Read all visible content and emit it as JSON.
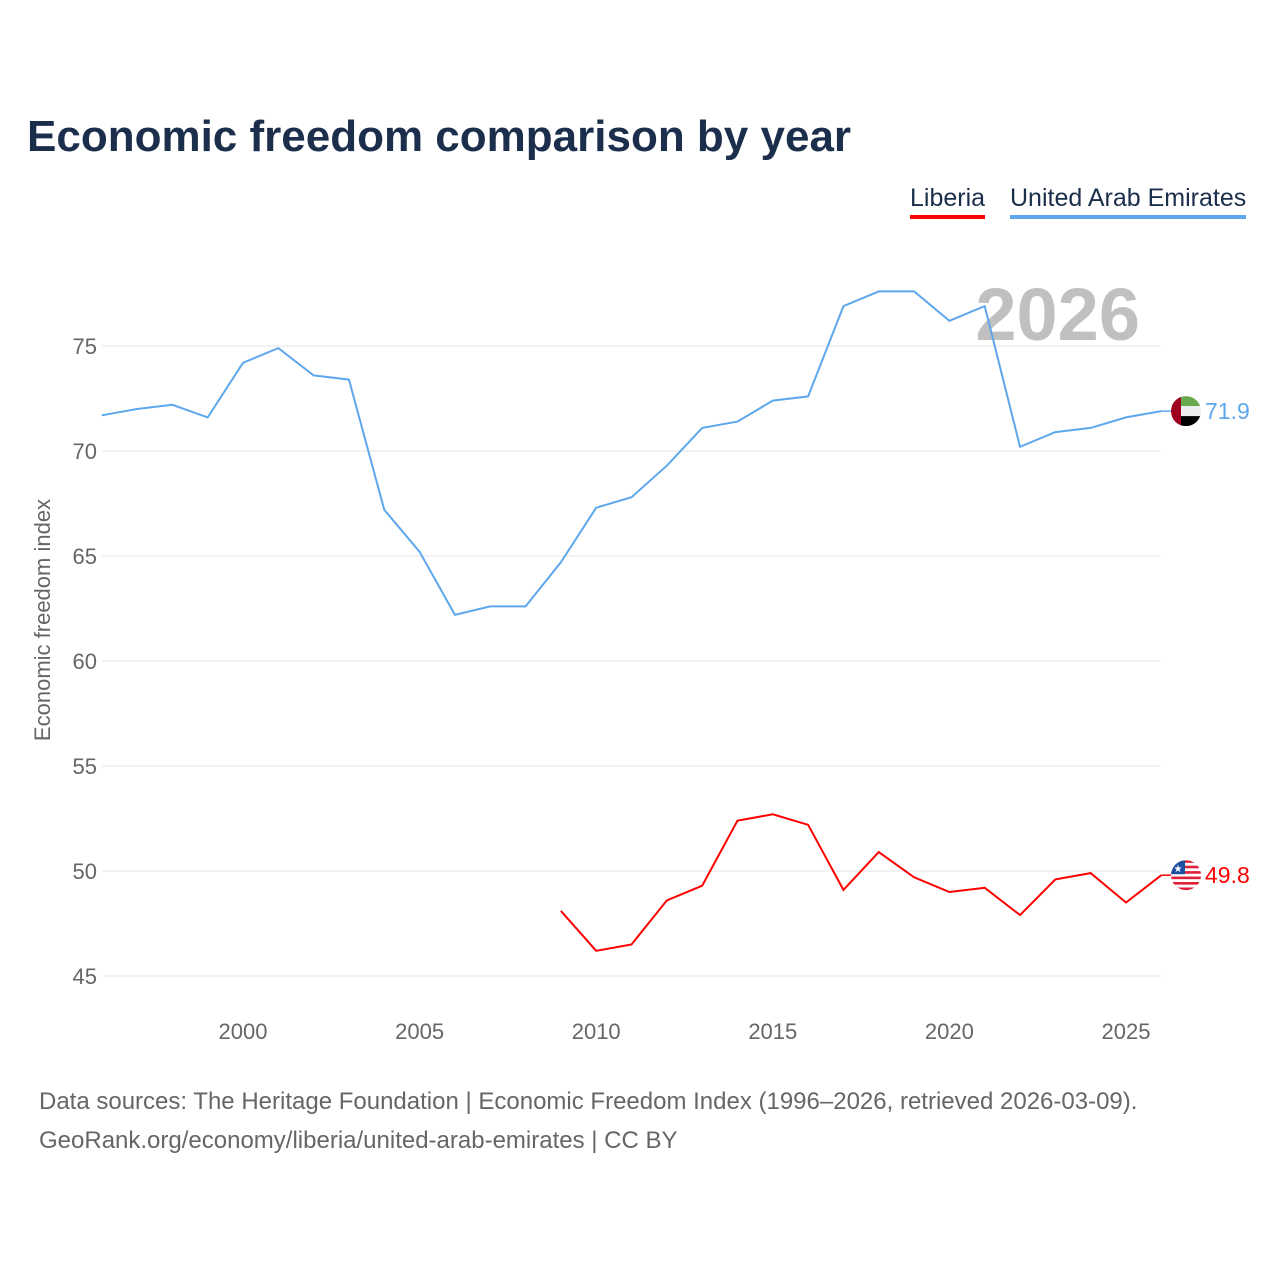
{
  "title": "Economic freedom comparison by year",
  "legend": [
    {
      "label": "Liberia",
      "color": "#ff0000"
    },
    {
      "label": "United Arab Emirates",
      "color": "#5ea7ec"
    }
  ],
  "footer": {
    "line1": "Data sources: The Heritage Foundation | Economic Freedom Index (1996–2026, retrieved 2026-03-09).",
    "line2": "GeoRank.org/economy/liberia/united-arab-emirates | CC BY"
  },
  "chart_data": {
    "type": "line",
    "title": "Economic freedom comparison by year",
    "ylabel": "Economic freedom index",
    "xlabel": "",
    "year_watermark": "2026",
    "xlim": [
      1996,
      2026
    ],
    "ylim": [
      43.5,
      79
    ],
    "xticks": [
      2000,
      2005,
      2010,
      2015,
      2020,
      2025
    ],
    "yticks": [
      45,
      50,
      55,
      60,
      65,
      70,
      75
    ],
    "series": [
      {
        "name": "United Arab Emirates",
        "color": "#5ea7ec",
        "end_label": "71.9",
        "flag": "uae-flag",
        "x": [
          1996,
          1997,
          1998,
          1999,
          2000,
          2001,
          2002,
          2003,
          2004,
          2005,
          2006,
          2007,
          2008,
          2009,
          2010,
          2011,
          2012,
          2013,
          2014,
          2015,
          2016,
          2017,
          2018,
          2019,
          2020,
          2021,
          2022,
          2023,
          2024,
          2025,
          2026
        ],
        "values": [
          71.7,
          72.0,
          72.2,
          71.6,
          74.2,
          74.9,
          73.6,
          73.4,
          67.2,
          65.2,
          62.2,
          62.6,
          62.6,
          64.7,
          67.3,
          67.8,
          69.3,
          71.1,
          71.4,
          72.4,
          72.6,
          76.9,
          77.6,
          77.6,
          76.2,
          76.9,
          70.2,
          70.9,
          71.1,
          71.6,
          71.9
        ]
      },
      {
        "name": "Liberia",
        "color": "#ff0000",
        "end_label": "49.8",
        "flag": "liberia-flag",
        "x": [
          2009,
          2010,
          2011,
          2012,
          2013,
          2014,
          2015,
          2016,
          2017,
          2018,
          2019,
          2020,
          2021,
          2022,
          2023,
          2024,
          2025,
          2026
        ],
        "values": [
          48.1,
          46.2,
          46.5,
          48.6,
          49.3,
          52.4,
          52.7,
          52.2,
          49.1,
          50.9,
          49.7,
          49.0,
          49.2,
          47.9,
          49.6,
          49.9,
          48.5,
          49.8
        ]
      }
    ]
  }
}
